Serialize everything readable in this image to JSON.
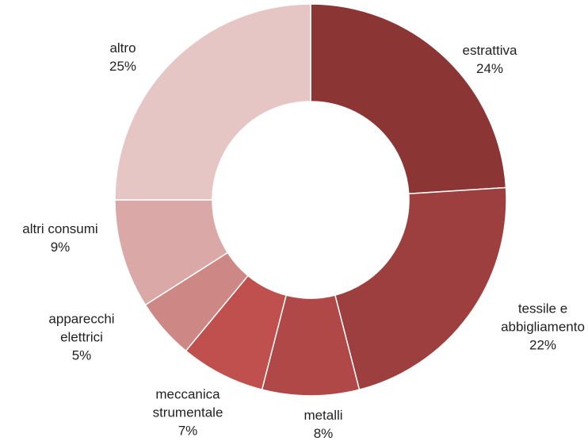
{
  "chart_data": {
    "type": "donut",
    "categories": [
      "estrattiva",
      "tessile e abbigliamento",
      "metalli",
      "meccanica strumentale",
      "apparecchi elettrici",
      "altri consumi",
      "altro"
    ],
    "values": [
      24,
      22,
      8,
      7,
      5,
      9,
      25
    ],
    "value_labels": [
      "24%",
      "22%",
      "8%",
      "7%",
      "5%",
      "9%",
      "25%"
    ],
    "colors": [
      "#8b3535",
      "#9e3f3f",
      "#b04848",
      "#c0504d",
      "#cd8784",
      "#d9a8a7",
      "#e6c6c5"
    ]
  }
}
